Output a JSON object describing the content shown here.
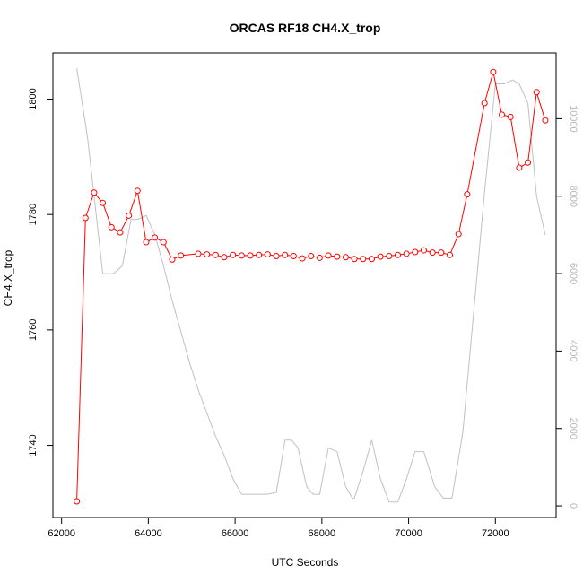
{
  "chart_data": {
    "type": "line",
    "title": "ORCAS RF18 CH4.X_trop",
    "xlabel": "UTC Seconds",
    "ylabel": "CH4.X_trop",
    "xlim": [
      61800,
      73400
    ],
    "ylim": [
      1727.5,
      1808
    ],
    "y2lim": [
      -300,
      11700
    ],
    "x_ticks": [
      "62000",
      "64000",
      "66000",
      "68000",
      "70000",
      "72000"
    ],
    "y_ticks": [
      "1740",
      "1760",
      "1780",
      "1800"
    ],
    "y2_ticks": [
      "0",
      "2000",
      "4000",
      "6000",
      "8000",
      "10000"
    ],
    "colors": {
      "series": "#ff0000",
      "secondary": "#c0c0c0"
    },
    "series": [
      {
        "axis": "left",
        "style": "line+circle",
        "x": [
          62350,
          62550,
          62750,
          62950,
          63150,
          63350,
          63550,
          63750,
          63950,
          64150,
          64350,
          64550,
          64750,
          65150,
          65350,
          65550,
          65750,
          65950,
          66150,
          66350,
          66550,
          66750,
          66950,
          67150,
          67350,
          67550,
          67750,
          67950,
          68150,
          68350,
          68550,
          68750,
          68950,
          69150,
          69350,
          69550,
          69750,
          69950,
          70150,
          70350,
          70550,
          70750,
          70950,
          71150,
          71350,
          71750,
          71950,
          72150,
          72350,
          72550,
          72750,
          72950,
          73150
        ],
        "values": [
          1730.3,
          1779.4,
          1783.8,
          1782.0,
          1777.8,
          1776.9,
          1779.8,
          1784.1,
          1775.2,
          1776.0,
          1775.2,
          1772.2,
          1772.9,
          1773.2,
          1773.1,
          1773.0,
          1772.6,
          1773.0,
          1772.9,
          1772.9,
          1773.0,
          1773.1,
          1772.8,
          1773.0,
          1772.8,
          1772.4,
          1772.8,
          1772.5,
          1772.9,
          1772.7,
          1772.6,
          1772.3,
          1772.3,
          1772.3,
          1772.7,
          1772.8,
          1773.0,
          1773.2,
          1773.5,
          1773.8,
          1773.4,
          1773.4,
          1773.0,
          1776.6,
          1783.5,
          1799.3,
          1804.7,
          1797.3,
          1796.9,
          1788.1,
          1789.0,
          1801.2,
          1796.3
        ]
      },
      {
        "axis": "right",
        "style": "line",
        "x": [
          62350,
          62600,
          62950,
          63200,
          63400,
          63600,
          63750,
          63950,
          64150,
          64350,
          64550,
          64750,
          64950,
          65150,
          65350,
          65550,
          65750,
          65950,
          66150,
          66350,
          66550,
          66750,
          66950,
          67150,
          67300,
          67450,
          67650,
          67800,
          67950,
          68150,
          68350,
          68550,
          68700,
          68750,
          68950,
          69150,
          69350,
          69550,
          69750,
          69950,
          70150,
          70350,
          70600,
          70800,
          71000,
          71250,
          71500,
          71750,
          72000,
          72200,
          72400,
          72550,
          72750,
          72950,
          73150
        ],
        "values": [
          11300,
          9500,
          6000,
          6000,
          6200,
          7400,
          7400,
          7500,
          7000,
          6200,
          5300,
          4500,
          3700,
          3000,
          2400,
          1800,
          1300,
          700,
          300,
          300,
          300,
          300,
          350,
          1700,
          1700,
          1500,
          500,
          300,
          300,
          1500,
          1400,
          500,
          200,
          200,
          900,
          1700,
          700,
          100,
          100,
          700,
          1400,
          1400,
          500,
          200,
          200,
          1900,
          5000,
          8100,
          10900,
          10900,
          11000,
          10900,
          10400,
          8000,
          7000
        ]
      }
    ]
  }
}
